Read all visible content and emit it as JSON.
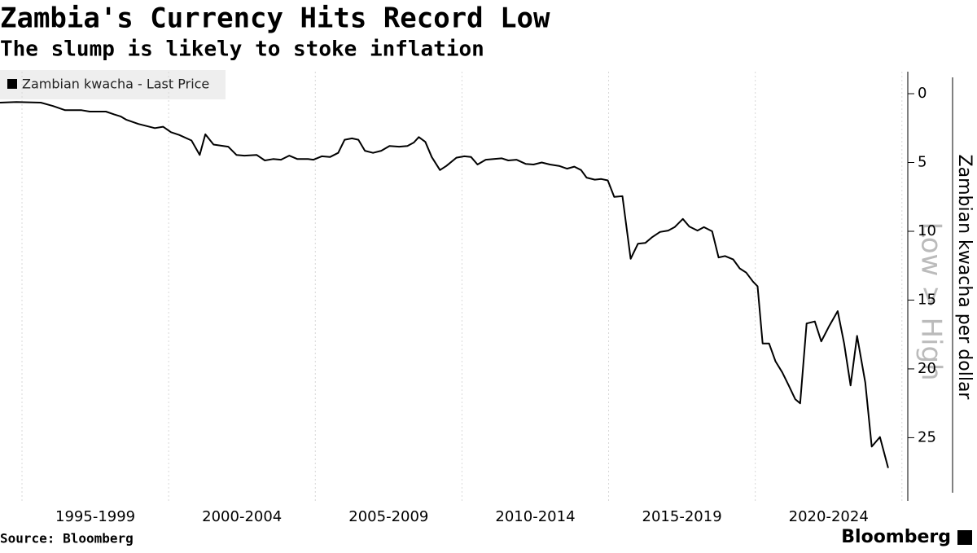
{
  "chart_data": {
    "type": "line",
    "title": "Zambia's Currency Hits Record Low",
    "subtitle": "The slump is likely to stoke inflation",
    "source": "Source: Bloomberg",
    "brand": "Bloomberg",
    "y_axis_label": "Zambian kwacha per dollar",
    "direction_label": "Low > High",
    "y_inverted": true,
    "y_axis_side": "right",
    "xlim": [
      1994.25,
      2025.2
    ],
    "xticks": [
      1995,
      2000,
      2005,
      2010,
      2015,
      2020,
      2025
    ],
    "x_period_labels": [
      "1995-1999",
      "2000-2004",
      "2005-2009",
      "2010-2014",
      "2015-2019",
      "2020-2024"
    ],
    "ylim": [
      -1.6,
      29
    ],
    "yticks": [
      0,
      5,
      10,
      15,
      20,
      25
    ],
    "legend_position": "top-left",
    "series": [
      {
        "name": "Zambian kwacha - Last Price",
        "color": "#000000",
        "x": [
          1994.25,
          1994.81,
          1995.64,
          1996.06,
          1996.47,
          1997.03,
          1997.31,
          1997.86,
          1998.14,
          1998.36,
          1998.56,
          1998.97,
          1999.53,
          1999.81,
          2000.08,
          2000.36,
          2000.78,
          2001.06,
          2001.25,
          2001.53,
          2002.03,
          2002.31,
          2002.58,
          2003.0,
          2003.28,
          2003.56,
          2003.83,
          2004.11,
          2004.39,
          2004.75,
          2004.94,
          2005.22,
          2005.5,
          2005.78,
          2006.0,
          2006.25,
          2006.47,
          2006.69,
          2006.97,
          2007.25,
          2007.53,
          2007.86,
          2008.14,
          2008.36,
          2008.53,
          2008.75,
          2008.97,
          2009.25,
          2009.47,
          2009.81,
          2010.08,
          2010.31,
          2010.53,
          2010.81,
          2011.08,
          2011.36,
          2011.58,
          2011.86,
          2012.17,
          2012.44,
          2012.72,
          2013.0,
          2013.31,
          2013.58,
          2013.83,
          2014.06,
          2014.25,
          2014.53,
          2014.75,
          2014.97,
          2015.19,
          2015.47,
          2015.75,
          2016.0,
          2016.25,
          2016.47,
          2016.75,
          2017.03,
          2017.25,
          2017.53,
          2017.75,
          2018.03,
          2018.25,
          2018.53,
          2018.75,
          2018.97,
          2019.25,
          2019.47,
          2019.69,
          2019.92,
          2020.08,
          2020.25,
          2020.47,
          2020.69,
          2020.92,
          2021.14,
          2021.36,
          2021.53,
          2021.75,
          2022.03,
          2022.25,
          2022.53,
          2022.81,
          2023.03,
          2023.25,
          2023.47,
          2023.75,
          2023.97,
          2024.25,
          2024.53
        ],
        "values": [
          0.65,
          0.6,
          0.65,
          0.9,
          1.2,
          1.2,
          1.3,
          1.3,
          1.5,
          1.65,
          1.9,
          2.2,
          2.5,
          2.4,
          2.8,
          3.0,
          3.4,
          4.45,
          2.95,
          3.7,
          3.85,
          4.45,
          4.5,
          4.45,
          4.85,
          4.75,
          4.8,
          4.5,
          4.75,
          4.75,
          4.8,
          4.55,
          4.6,
          4.3,
          3.35,
          3.25,
          3.35,
          4.15,
          4.3,
          4.15,
          3.8,
          3.85,
          3.8,
          3.55,
          3.15,
          3.5,
          4.6,
          5.55,
          5.25,
          4.65,
          4.55,
          4.6,
          5.15,
          4.8,
          4.75,
          4.7,
          4.85,
          4.8,
          5.1,
          5.15,
          5.0,
          5.15,
          5.25,
          5.45,
          5.3,
          5.55,
          6.1,
          6.25,
          6.2,
          6.3,
          7.5,
          7.45,
          12.0,
          10.9,
          10.85,
          10.45,
          10.05,
          9.95,
          9.7,
          9.1,
          9.65,
          9.95,
          9.7,
          10.0,
          11.9,
          11.8,
          12.05,
          12.7,
          13.0,
          13.65,
          14.0,
          18.15,
          18.15,
          19.45,
          20.25,
          21.2,
          22.2,
          22.5,
          16.7,
          16.55,
          18.0,
          16.85,
          15.8,
          18.15,
          21.2,
          17.6,
          21.0,
          25.65,
          24.95,
          27.2
        ]
      }
    ]
  }
}
